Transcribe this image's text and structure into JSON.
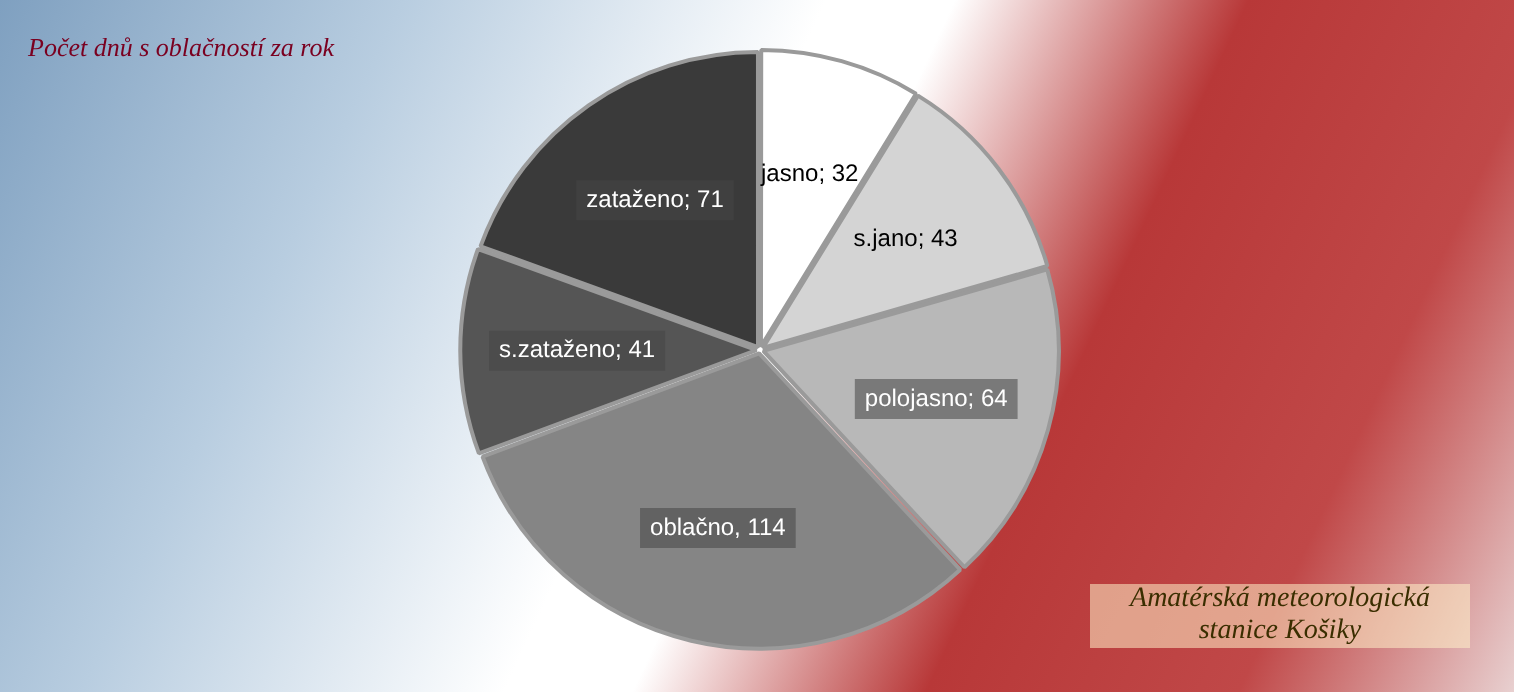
{
  "chart_data": {
    "type": "pie",
    "title": "Počet dnů s oblačností za rok",
    "categories": [
      "jasno",
      "s.jano",
      "polojasno",
      "oblačno",
      "s.zataženo",
      "zataženo"
    ],
    "values": [
      32,
      43,
      64,
      114,
      41,
      71
    ],
    "colors": [
      "#ffffff",
      "#d4d4d4",
      "#b8b8b8",
      "#858585",
      "#555555",
      "#3a3a3a"
    ],
    "value_labels": [
      "; 32",
      "; 43",
      "; 64",
      ", 114",
      "; 41",
      "; 71"
    ],
    "legend": false,
    "annotations": [
      "Amatérská meteorologická stanice Košiky"
    ]
  }
}
